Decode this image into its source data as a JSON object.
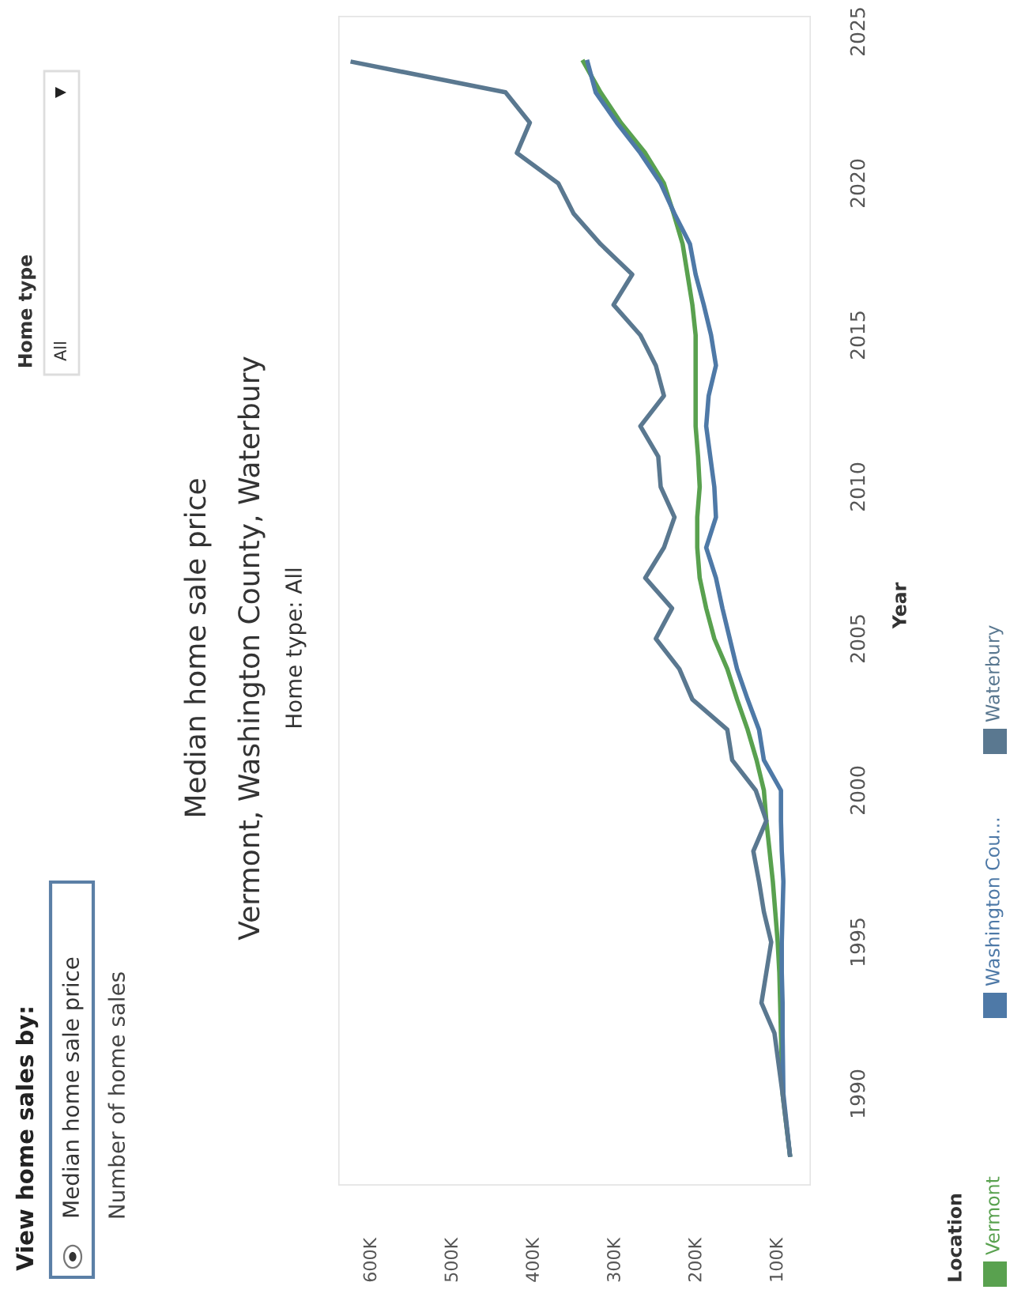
{
  "chart_data": {
    "type": "line",
    "title": "Median home sale price",
    "subtitle": "Vermont, Washington County, Waterbury",
    "ylabel": "Year",
    "legend_title": "Location",
    "legend": "bottom",
    "annotations": [
      "Home type: All",
      "View home sales by:",
      "Median home sale price",
      "Number of home sales",
      "Home type",
      "All"
    ],
    "ylim": [
      1987,
      2025.5
    ],
    "yticks": [
      1990,
      1995,
      2000,
      2005,
      2010,
      2015,
      2020,
      2025
    ],
    "xlim": [
      640000,
      60000
    ],
    "xticks": [
      {
        "value": 100000,
        "label": "100K"
      },
      {
        "value": 200000,
        "label": "200K"
      },
      {
        "value": 300000,
        "label": "300K"
      },
      {
        "value": 400000,
        "label": "400K"
      },
      {
        "value": 500000,
        "label": "500K"
      },
      {
        "value": 600000,
        "label": "600K"
      }
    ],
    "grid": false,
    "series": [
      {
        "name": "Vermont",
        "color": "#59a14f",
        "values": [
          1988,
          1990,
          1992,
          1993,
          1994,
          1995,
          1996,
          1997,
          1998,
          1999,
          2000,
          2001,
          2002,
          2003,
          2004,
          2005,
          2006,
          2007,
          2008,
          2009,
          2010,
          2011,
          2012,
          2013,
          2014,
          2015,
          2016,
          2017,
          2018,
          2019,
          2020,
          2021,
          2022,
          2023,
          2024
        ],
        "x": [
          85000,
          94000,
          96000,
          97000,
          98000,
          100000,
          103000,
          106000,
          110000,
          114000,
          117000,
          126000,
          137000,
          150000,
          162000,
          178000,
          188000,
          196000,
          199000,
          199000,
          196000,
          198000,
          201000,
          201000,
          201000,
          201000,
          205000,
          211000,
          217000,
          228000,
          240000,
          263000,
          293000,
          318000,
          339000
        ]
      },
      {
        "name": "Washington Cou...",
        "color": "#4e79a7",
        "values": [
          1988,
          1990,
          1992,
          1993,
          1994,
          1995,
          1996,
          1997,
          1998,
          1999,
          2000,
          2001,
          2002,
          2003,
          2004,
          2005,
          2006,
          2007,
          2008,
          2009,
          2010,
          2011,
          2012,
          2013,
          2014,
          2015,
          2016,
          2017,
          2018,
          2019,
          2020,
          2021,
          2022,
          2023,
          2024
        ],
        "x": [
          85000,
          93000,
          94000,
          94000,
          95000,
          95000,
          94000,
          93000,
          95000,
          96000,
          96000,
          117000,
          123000,
          137000,
          150000,
          159000,
          168000,
          176000,
          188000,
          176000,
          178000,
          183000,
          188000,
          185000,
          176000,
          182000,
          191000,
          201000,
          208000,
          227000,
          244000,
          269000,
          298000,
          324000,
          334000
        ]
      },
      {
        "name": "Waterbury",
        "color": "#5a7890",
        "values": [
          1988,
          1990,
          1992,
          1993,
          1994,
          1995,
          1996,
          1997,
          1998,
          1999,
          2000,
          2001,
          2002,
          2003,
          2004,
          2005,
          2006,
          2007,
          2008,
          2009,
          2010,
          2011,
          2012,
          2013,
          2014,
          2015,
          2016,
          2017,
          2018,
          2019,
          2020,
          2021,
          2022,
          2023,
          2024
        ],
        "x": [
          85000,
          94000,
          104000,
          120000,
          114000,
          108000,
          117000,
          123000,
          130000,
          114000,
          127000,
          156000,
          162000,
          205000,
          221000,
          250000,
          230000,
          263000,
          240000,
          227000,
          244000,
          247000,
          269000,
          240000,
          250000,
          269000,
          302000,
          279000,
          318000,
          351000,
          370000,
          421000,
          405000,
          435000,
          623000
        ]
      }
    ]
  }
}
